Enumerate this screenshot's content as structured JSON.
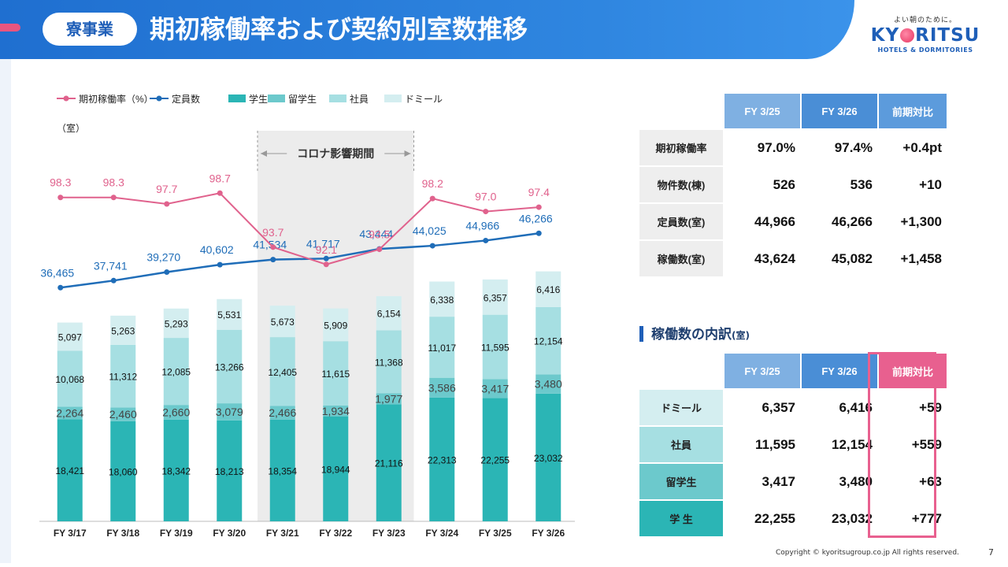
{
  "header": {
    "section": "寮事業",
    "title": "期初稼働率および契約別室数推移",
    "logo_tagline": "よい朝のために。",
    "logo_name_left": "KY",
    "logo_name_right": "RITSU",
    "logo_sub": "HOTELS & DORMITORIES"
  },
  "colors": {
    "rate": "#e0628d",
    "capacity": "#1f6db8",
    "student": "#2bb5b5",
    "intl_student": "#6cc9cc",
    "employee": "#a6dfe2",
    "dormy": "#d4eef0",
    "shade": "#ececec"
  },
  "chart_data": {
    "type": "bar+line",
    "unit_label": "（室）",
    "legend": [
      "期初稼働率（%）",
      "定員数",
      "学生",
      "留学生",
      "社員",
      "ドミール"
    ],
    "categories": [
      "FY 3/17",
      "FY 3/18",
      "FY 3/19",
      "FY 3/20",
      "FY 3/21",
      "FY 3/22",
      "FY 3/23",
      "FY 3/24",
      "FY 3/25",
      "FY 3/26"
    ],
    "series": [
      {
        "name": "学生",
        "values": [
          18421,
          18060,
          18342,
          18213,
          18354,
          18944,
          21116,
          22313,
          22255,
          23032
        ]
      },
      {
        "name": "留学生",
        "values": [
          2264,
          2460,
          2660,
          3079,
          2466,
          1934,
          1977,
          3586,
          3417,
          3480
        ]
      },
      {
        "name": "社員",
        "values": [
          10068,
          11312,
          12085,
          13266,
          12405,
          11615,
          11368,
          11017,
          11595,
          12154
        ]
      },
      {
        "name": "ドミール",
        "values": [
          5097,
          5263,
          5293,
          5531,
          5673,
          5909,
          6154,
          6338,
          6357,
          6416
        ]
      }
    ],
    "capacity": {
      "name": "定員数",
      "values": [
        36465,
        37741,
        39270,
        40602,
        41534,
        41717,
        43444,
        44025,
        44966,
        46266
      ]
    },
    "occupancy_rate": {
      "name": "期初稼働率（%）",
      "values": [
        98.3,
        98.3,
        97.7,
        98.7,
        93.7,
        92.1,
        93.5,
        98.2,
        97.0,
        97.4
      ],
      "ylim": [
        88,
        102
      ]
    },
    "ylim": [
      0,
      50000
    ],
    "shaded_period": {
      "label": "コロナ影響期間",
      "from": "FY 3/21",
      "to": "FY 3/23"
    }
  },
  "summary_table": {
    "headers": [
      "FY 3/25",
      "FY 3/26",
      "前期対比"
    ],
    "rows": [
      {
        "label": "期初稼働率",
        "fy25": "97.0%",
        "fy26": "97.4%",
        "yoy": "+0.4pt"
      },
      {
        "label": "物件数(棟)",
        "fy25": "526",
        "fy26": "536",
        "yoy": "+10"
      },
      {
        "label": "定員数(室)",
        "fy25": "44,966",
        "fy26": "46,266",
        "yoy": "+1,300"
      },
      {
        "label": "稼働数(室)",
        "fy25": "43,624",
        "fy26": "45,082",
        "yoy": "+1,458"
      }
    ]
  },
  "breakdown": {
    "title": "稼働数の内訳",
    "unit": "(室)",
    "headers": [
      "FY 3/25",
      "FY 3/26",
      "前期対比"
    ],
    "rows": [
      {
        "label": "ドミール",
        "fy25": "6,357",
        "fy26": "6,416",
        "yoy": "+59"
      },
      {
        "label": "社員",
        "fy25": "11,595",
        "fy26": "12,154",
        "yoy": "+559"
      },
      {
        "label": "留学生",
        "fy25": "3,417",
        "fy26": "3,480",
        "yoy": "+63"
      },
      {
        "label": "学 生",
        "fy25": "22,255",
        "fy26": "23,032",
        "yoy": "+777"
      }
    ]
  },
  "footer": {
    "copyright": "Copyright © kyoritsugroup.co.jp All rights reserved.",
    "page": "7"
  }
}
